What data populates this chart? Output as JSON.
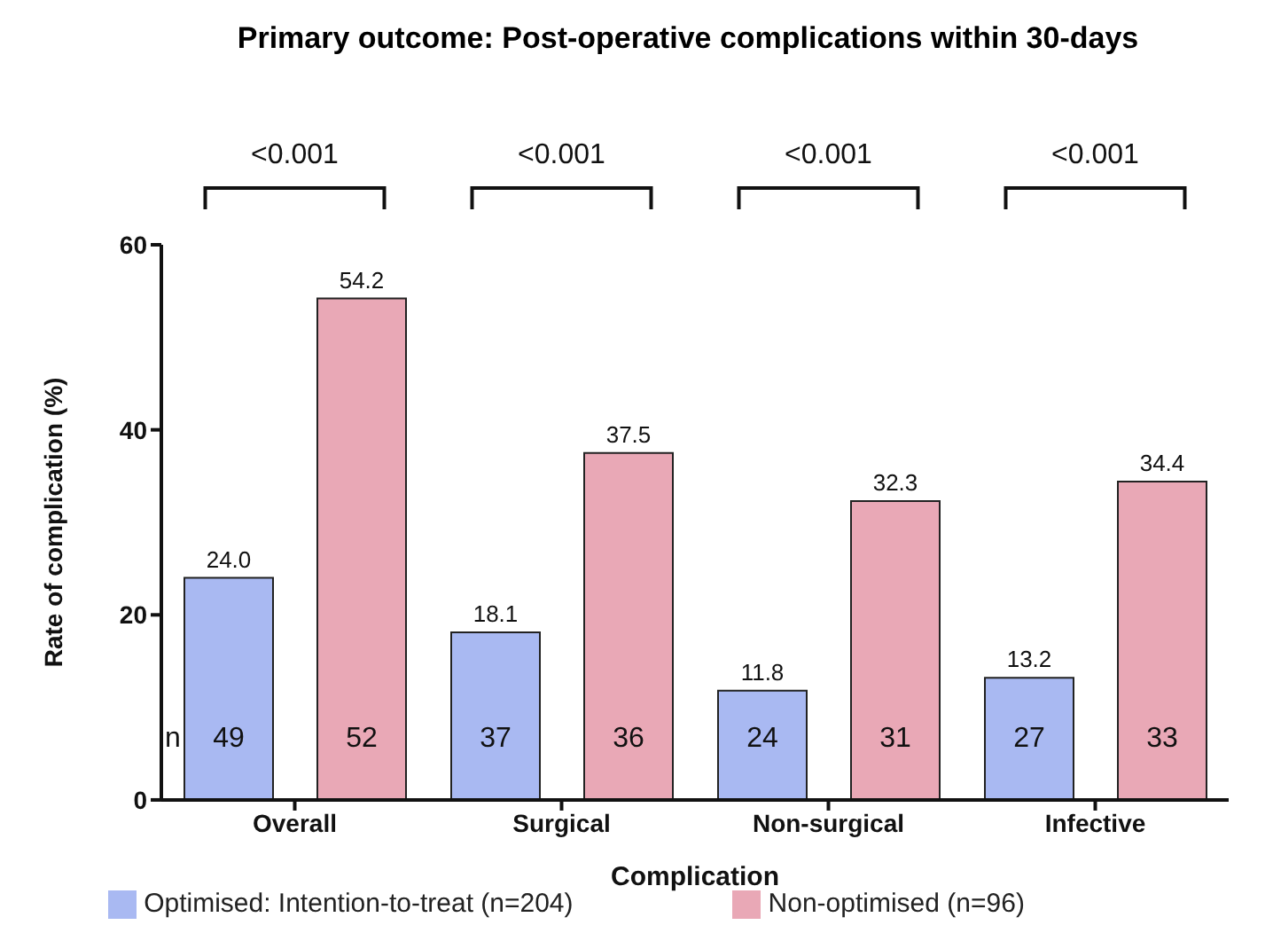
{
  "chart_data": {
    "type": "bar",
    "title": "Primary outcome: Post-operative complications within 30-days",
    "xlabel": "Complication",
    "ylabel": "Rate of complication (%)",
    "categories": [
      "Overall",
      "Surgical",
      "Non-surgical",
      "Infective"
    ],
    "series": [
      {
        "name": "Optimised: Intention-to-treat (n=204)",
        "color": "#a9b9f2",
        "values": [
          24.0,
          18.1,
          11.8,
          13.2
        ],
        "value_labels": [
          "24.0",
          "18.1",
          "11.8",
          "13.2"
        ]
      },
      {
        "name": "Non-optimised (n=96)",
        "color": "#e9a8b6",
        "values": [
          54.2,
          37.5,
          32.3,
          34.4
        ],
        "value_labels": [
          "54.2",
          "37.5",
          "32.3",
          "34.4"
        ]
      }
    ],
    "ylim": [
      0,
      60
    ],
    "yticks": [
      0,
      20,
      40,
      60
    ],
    "grid": false,
    "legend": "bottom",
    "annotations": [
      "n",
      "<0.001",
      "<0.001",
      "<0.001",
      "<0.001",
      "49",
      "52",
      "37",
      "36",
      "24",
      "31",
      "27",
      "33"
    ]
  }
}
